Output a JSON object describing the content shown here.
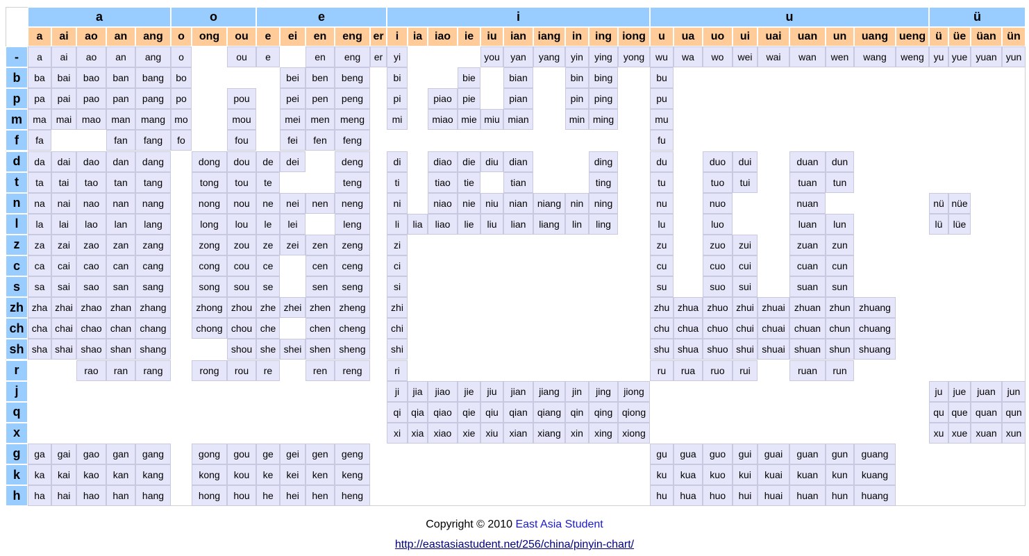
{
  "groups": [
    {
      "label": "a",
      "finals": [
        "a",
        "ai",
        "ao",
        "an",
        "ang"
      ]
    },
    {
      "label": "o",
      "finals": [
        "o",
        "ong",
        "ou"
      ]
    },
    {
      "label": "e",
      "finals": [
        "e",
        "ei",
        "en",
        "eng",
        "er"
      ]
    },
    {
      "label": "i",
      "finals": [
        "i",
        "ia",
        "iao",
        "ie",
        "iu",
        "ian",
        "iang",
        "in",
        "ing",
        "iong"
      ]
    },
    {
      "label": "u",
      "finals": [
        "u",
        "ua",
        "uo",
        "ui",
        "uai",
        "uan",
        "un",
        "uang",
        "ueng"
      ]
    },
    {
      "label": "ü",
      "finals": [
        "ü",
        "üe",
        "üan",
        "ün"
      ]
    }
  ],
  "rows": [
    {
      "initial": "-",
      "cells": [
        "a",
        "ai",
        "ao",
        "an",
        "ang",
        "o",
        null,
        "ou",
        "e",
        null,
        "en",
        "eng",
        "er",
        "yi",
        null,
        null,
        null,
        "you",
        "yan",
        "yang",
        "yin",
        "ying",
        "yong",
        "wu",
        "wa",
        "wo",
        "wei",
        "wai",
        "wan",
        "wen",
        "wang",
        "weng",
        "yu",
        "yue",
        "yuan",
        "yun"
      ]
    },
    {
      "initial": "b",
      "cells": [
        "ba",
        "bai",
        "bao",
        "ban",
        "bang",
        "bo",
        null,
        null,
        null,
        "bei",
        "ben",
        "beng",
        null,
        "bi",
        null,
        null,
        "bie",
        null,
        "bian",
        null,
        "bin",
        "bing",
        null,
        "bu",
        null,
        null,
        null,
        null,
        null,
        null,
        null,
        null,
        null,
        null,
        null,
        null
      ]
    },
    {
      "initial": "p",
      "cells": [
        "pa",
        "pai",
        "pao",
        "pan",
        "pang",
        "po",
        null,
        "pou",
        null,
        "pei",
        "pen",
        "peng",
        null,
        "pi",
        null,
        "piao",
        "pie",
        null,
        "pian",
        null,
        "pin",
        "ping",
        null,
        "pu",
        null,
        null,
        null,
        null,
        null,
        null,
        null,
        null,
        null,
        null,
        null,
        null
      ]
    },
    {
      "initial": "m",
      "cells": [
        "ma",
        "mai",
        "mao",
        "man",
        "mang",
        "mo",
        null,
        "mou",
        null,
        "mei",
        "men",
        "meng",
        null,
        "mi",
        null,
        "miao",
        "mie",
        "miu",
        "mian",
        null,
        "min",
        "ming",
        null,
        "mu",
        null,
        null,
        null,
        null,
        null,
        null,
        null,
        null,
        null,
        null,
        null,
        null
      ]
    },
    {
      "initial": "f",
      "cells": [
        "fa",
        null,
        null,
        "fan",
        "fang",
        "fo",
        null,
        "fou",
        null,
        "fei",
        "fen",
        "feng",
        null,
        null,
        null,
        null,
        null,
        null,
        null,
        null,
        null,
        null,
        null,
        "fu",
        null,
        null,
        null,
        null,
        null,
        null,
        null,
        null,
        null,
        null,
        null,
        null
      ]
    },
    {
      "initial": "d",
      "cells": [
        "da",
        "dai",
        "dao",
        "dan",
        "dang",
        null,
        "dong",
        "dou",
        "de",
        "dei",
        null,
        "deng",
        null,
        "di",
        null,
        "diao",
        "die",
        "diu",
        "dian",
        null,
        null,
        "ding",
        null,
        "du",
        null,
        "duo",
        "dui",
        null,
        "duan",
        "dun",
        null,
        null,
        null,
        null,
        null,
        null
      ]
    },
    {
      "initial": "t",
      "cells": [
        "ta",
        "tai",
        "tao",
        "tan",
        "tang",
        null,
        "tong",
        "tou",
        "te",
        null,
        null,
        "teng",
        null,
        "ti",
        null,
        "tiao",
        "tie",
        null,
        "tian",
        null,
        null,
        "ting",
        null,
        "tu",
        null,
        "tuo",
        "tui",
        null,
        "tuan",
        "tun",
        null,
        null,
        null,
        null,
        null,
        null
      ]
    },
    {
      "initial": "n",
      "cells": [
        "na",
        "nai",
        "nao",
        "nan",
        "nang",
        null,
        "nong",
        "nou",
        "ne",
        "nei",
        "nen",
        "neng",
        null,
        "ni",
        null,
        "niao",
        "nie",
        "niu",
        "nian",
        "niang",
        "nin",
        "ning",
        null,
        "nu",
        null,
        "nuo",
        null,
        null,
        "nuan",
        null,
        null,
        null,
        "nü",
        "nüe",
        null,
        null
      ]
    },
    {
      "initial": "l",
      "cells": [
        "la",
        "lai",
        "lao",
        "lan",
        "lang",
        null,
        "long",
        "lou",
        "le",
        "lei",
        null,
        "leng",
        null,
        "li",
        "lia",
        "liao",
        "lie",
        "liu",
        "lian",
        "liang",
        "lin",
        "ling",
        null,
        "lu",
        null,
        "luo",
        null,
        null,
        "luan",
        "lun",
        null,
        null,
        "lü",
        "lüe",
        null,
        null
      ]
    },
    {
      "initial": "z",
      "cells": [
        "za",
        "zai",
        "zao",
        "zan",
        "zang",
        null,
        "zong",
        "zou",
        "ze",
        "zei",
        "zen",
        "zeng",
        null,
        "zi",
        null,
        null,
        null,
        null,
        null,
        null,
        null,
        null,
        null,
        "zu",
        null,
        "zuo",
        "zui",
        null,
        "zuan",
        "zun",
        null,
        null,
        null,
        null,
        null,
        null
      ]
    },
    {
      "initial": "c",
      "cells": [
        "ca",
        "cai",
        "cao",
        "can",
        "cang",
        null,
        "cong",
        "cou",
        "ce",
        null,
        "cen",
        "ceng",
        null,
        "ci",
        null,
        null,
        null,
        null,
        null,
        null,
        null,
        null,
        null,
        "cu",
        null,
        "cuo",
        "cui",
        null,
        "cuan",
        "cun",
        null,
        null,
        null,
        null,
        null,
        null
      ]
    },
    {
      "initial": "s",
      "cells": [
        "sa",
        "sai",
        "sao",
        "san",
        "sang",
        null,
        "song",
        "sou",
        "se",
        null,
        "sen",
        "seng",
        null,
        "si",
        null,
        null,
        null,
        null,
        null,
        null,
        null,
        null,
        null,
        "su",
        null,
        "suo",
        "sui",
        null,
        "suan",
        "sun",
        null,
        null,
        null,
        null,
        null,
        null
      ]
    },
    {
      "initial": "zh",
      "cells": [
        "zha",
        "zhai",
        "zhao",
        "zhan",
        "zhang",
        null,
        "zhong",
        "zhou",
        "zhe",
        "zhei",
        "zhen",
        "zheng",
        null,
        "zhi",
        null,
        null,
        null,
        null,
        null,
        null,
        null,
        null,
        null,
        "zhu",
        "zhua",
        "zhuo",
        "zhui",
        "zhuai",
        "zhuan",
        "zhun",
        "zhuang",
        null,
        null,
        null,
        null,
        null
      ]
    },
    {
      "initial": "ch",
      "cells": [
        "cha",
        "chai",
        "chao",
        "chan",
        "chang",
        null,
        "chong",
        "chou",
        "che",
        null,
        "chen",
        "cheng",
        null,
        "chi",
        null,
        null,
        null,
        null,
        null,
        null,
        null,
        null,
        null,
        "chu",
        "chua",
        "chuo",
        "chui",
        "chuai",
        "chuan",
        "chun",
        "chuang",
        null,
        null,
        null,
        null,
        null
      ]
    },
    {
      "initial": "sh",
      "cells": [
        "sha",
        "shai",
        "shao",
        "shan",
        "shang",
        null,
        null,
        "shou",
        "she",
        "shei",
        "shen",
        "sheng",
        null,
        "shi",
        null,
        null,
        null,
        null,
        null,
        null,
        null,
        null,
        null,
        "shu",
        "shua",
        "shuo",
        "shui",
        "shuai",
        "shuan",
        "shun",
        "shuang",
        null,
        null,
        null,
        null,
        null
      ]
    },
    {
      "initial": "r",
      "cells": [
        null,
        null,
        "rao",
        "ran",
        "rang",
        null,
        "rong",
        "rou",
        "re",
        null,
        "ren",
        "reng",
        null,
        "ri",
        null,
        null,
        null,
        null,
        null,
        null,
        null,
        null,
        null,
        "ru",
        "rua",
        "ruo",
        "rui",
        null,
        "ruan",
        "run",
        null,
        null,
        null,
        null,
        null,
        null
      ]
    },
    {
      "initial": "j",
      "cells": [
        null,
        null,
        null,
        null,
        null,
        null,
        null,
        null,
        null,
        null,
        null,
        null,
        null,
        "ji",
        "jia",
        "jiao",
        "jie",
        "jiu",
        "jian",
        "jiang",
        "jin",
        "jing",
        "jiong",
        null,
        null,
        null,
        null,
        null,
        null,
        null,
        null,
        null,
        "ju",
        "jue",
        "juan",
        "jun"
      ]
    },
    {
      "initial": "q",
      "cells": [
        null,
        null,
        null,
        null,
        null,
        null,
        null,
        null,
        null,
        null,
        null,
        null,
        null,
        "qi",
        "qia",
        "qiao",
        "qie",
        "qiu",
        "qian",
        "qiang",
        "qin",
        "qing",
        "qiong",
        null,
        null,
        null,
        null,
        null,
        null,
        null,
        null,
        null,
        "qu",
        "que",
        "quan",
        "qun"
      ]
    },
    {
      "initial": "x",
      "cells": [
        null,
        null,
        null,
        null,
        null,
        null,
        null,
        null,
        null,
        null,
        null,
        null,
        null,
        "xi",
        "xia",
        "xiao",
        "xie",
        "xiu",
        "xian",
        "xiang",
        "xin",
        "xing",
        "xiong",
        null,
        null,
        null,
        null,
        null,
        null,
        null,
        null,
        null,
        "xu",
        "xue",
        "xuan",
        "xun"
      ]
    },
    {
      "initial": "g",
      "cells": [
        "ga",
        "gai",
        "gao",
        "gan",
        "gang",
        null,
        "gong",
        "gou",
        "ge",
        "gei",
        "gen",
        "geng",
        null,
        null,
        null,
        null,
        null,
        null,
        null,
        null,
        null,
        null,
        null,
        "gu",
        "gua",
        "guo",
        "gui",
        "guai",
        "guan",
        "gun",
        "guang",
        null,
        null,
        null,
        null,
        null
      ]
    },
    {
      "initial": "k",
      "cells": [
        "ka",
        "kai",
        "kao",
        "kan",
        "kang",
        null,
        "kong",
        "kou",
        "ke",
        "kei",
        "ken",
        "keng",
        null,
        null,
        null,
        null,
        null,
        null,
        null,
        null,
        null,
        null,
        null,
        "ku",
        "kua",
        "kuo",
        "kui",
        "kuai",
        "kuan",
        "kun",
        "kuang",
        null,
        null,
        null,
        null,
        null
      ]
    },
    {
      "initial": "h",
      "cells": [
        "ha",
        "hai",
        "hao",
        "han",
        "hang",
        null,
        "hong",
        "hou",
        "he",
        "hei",
        "hen",
        "heng",
        null,
        null,
        null,
        null,
        null,
        null,
        null,
        null,
        null,
        null,
        null,
        "hu",
        "hua",
        "huo",
        "hui",
        "huai",
        "huan",
        "hun",
        "huang",
        null,
        null,
        null,
        null,
        null
      ]
    }
  ],
  "footer": {
    "copyright": "Copyright © 2010",
    "link": "East Asia Student",
    "url": "http://eastasiastudent.net/256/china/pinyin-chart/"
  }
}
